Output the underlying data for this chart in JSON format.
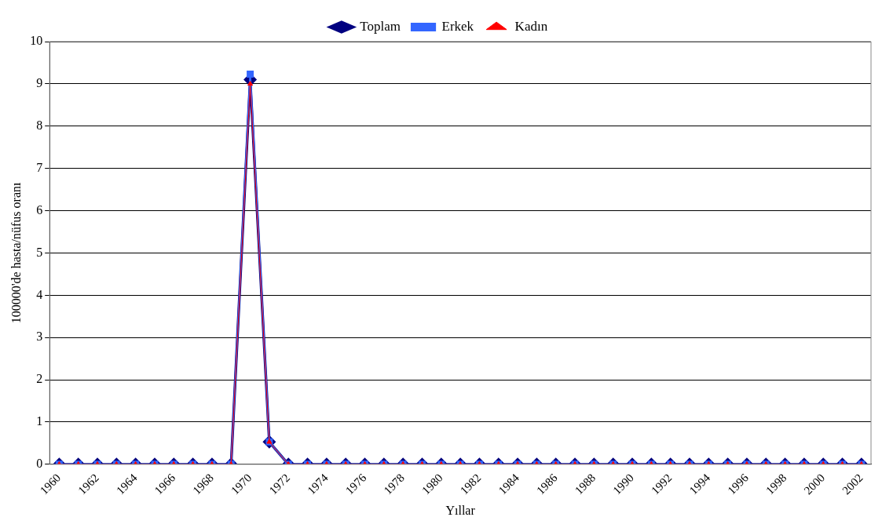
{
  "chart_data": {
    "type": "line",
    "xlabel": "Yıllar",
    "ylabel": "100000'de hasta/nüfus oranı",
    "categories": [
      "1960",
      null,
      "1962",
      null,
      "1964",
      null,
      "1966",
      null,
      "1968",
      null,
      "1970",
      null,
      "1972",
      null,
      "1974",
      null,
      "1976",
      null,
      "1978",
      null,
      "1980",
      null,
      "1982",
      null,
      "1984",
      null,
      "1986",
      null,
      "1988",
      null,
      "1990",
      null,
      "1992",
      null,
      "1994",
      null,
      "1996",
      null,
      "1998",
      null,
      "2000",
      null,
      "2002"
    ],
    "series": [
      {
        "name": "Toplam",
        "color": "#000080",
        "marker": "diamond",
        "values": [
          0,
          0,
          0,
          0,
          0,
          0,
          0,
          0,
          0,
          0,
          9.1,
          0.53,
          0,
          0,
          0,
          0,
          0,
          0,
          0,
          0,
          0,
          0,
          0,
          0,
          0,
          0,
          0,
          0,
          0,
          0,
          0,
          0,
          0,
          0,
          0,
          0,
          0,
          0,
          0,
          0,
          0,
          0,
          0
        ]
      },
      {
        "name": "Erkek",
        "color": "#3366ff",
        "marker": "square",
        "values": [
          0,
          0,
          0,
          0,
          0,
          0,
          0,
          0,
          0,
          0,
          9.23,
          0.53,
          0,
          0,
          0,
          0,
          0,
          0,
          0,
          0,
          0,
          0,
          0,
          0,
          0,
          0,
          0,
          0,
          0,
          0,
          0,
          0,
          0,
          0,
          0,
          0,
          0,
          0,
          0,
          0,
          0,
          0,
          0
        ]
      },
      {
        "name": "Kadın",
        "color": "#ff0000",
        "marker": "triangle",
        "values": [
          0,
          0,
          0,
          0,
          0,
          0,
          0,
          0,
          0,
          0,
          9.0,
          0.53,
          0,
          0,
          0,
          0,
          0,
          0,
          0,
          0,
          0,
          0,
          0,
          0,
          0,
          0,
          0,
          0,
          0,
          0,
          0,
          0,
          0,
          0,
          0,
          0,
          0,
          0,
          0,
          0,
          0,
          0,
          0
        ]
      }
    ],
    "ylim": [
      0,
      10
    ],
    "yticks": [
      0,
      1,
      2,
      3,
      4,
      5,
      6,
      7,
      8,
      9,
      10
    ],
    "grid": "y",
    "legend": "top"
  }
}
